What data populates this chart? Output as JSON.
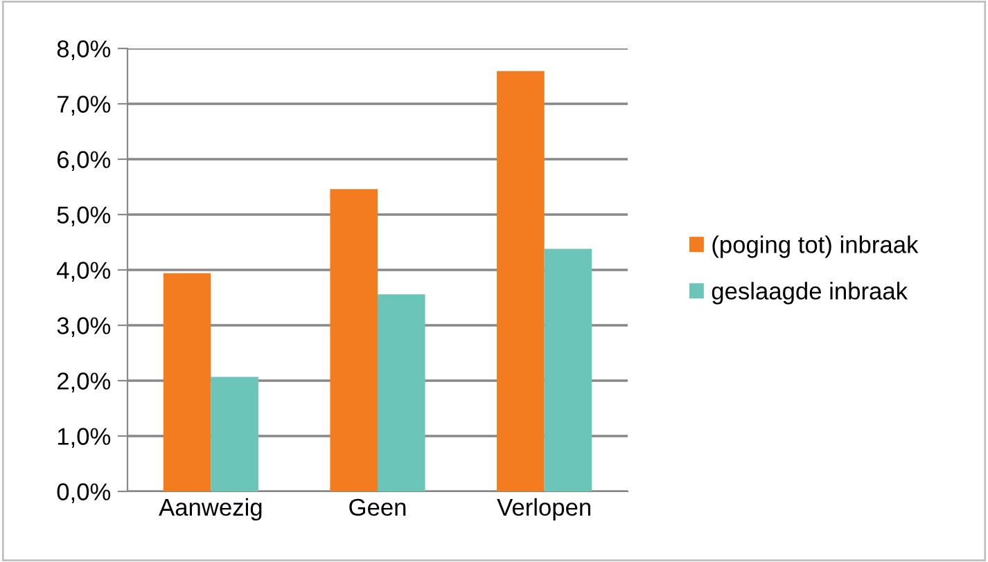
{
  "chart_data": {
    "type": "bar",
    "categories": [
      "Aanwezig",
      "Geen",
      "Verlopen"
    ],
    "series": [
      {
        "name": "(poging tot) inbraak",
        "color": "#f47c20",
        "values": [
          3.94,
          5.46,
          7.59
        ]
      },
      {
        "name": "geslaagde inbraak",
        "color": "#6cc5b9",
        "values": [
          2.07,
          3.56,
          4.38
        ]
      }
    ],
    "ylim": [
      0,
      8
    ],
    "yticks": [
      {
        "value": 0,
        "label": "0,0%"
      },
      {
        "value": 1,
        "label": "1,0%"
      },
      {
        "value": 2,
        "label": "2,0%"
      },
      {
        "value": 3,
        "label": "3,0%"
      },
      {
        "value": 4,
        "label": "4,0%"
      },
      {
        "value": 5,
        "label": "5,0%"
      },
      {
        "value": 6,
        "label": "6,0%"
      },
      {
        "value": 7,
        "label": "7,0%"
      },
      {
        "value": 8,
        "label": "8,0%"
      }
    ],
    "grid": "y",
    "legend": "right"
  }
}
